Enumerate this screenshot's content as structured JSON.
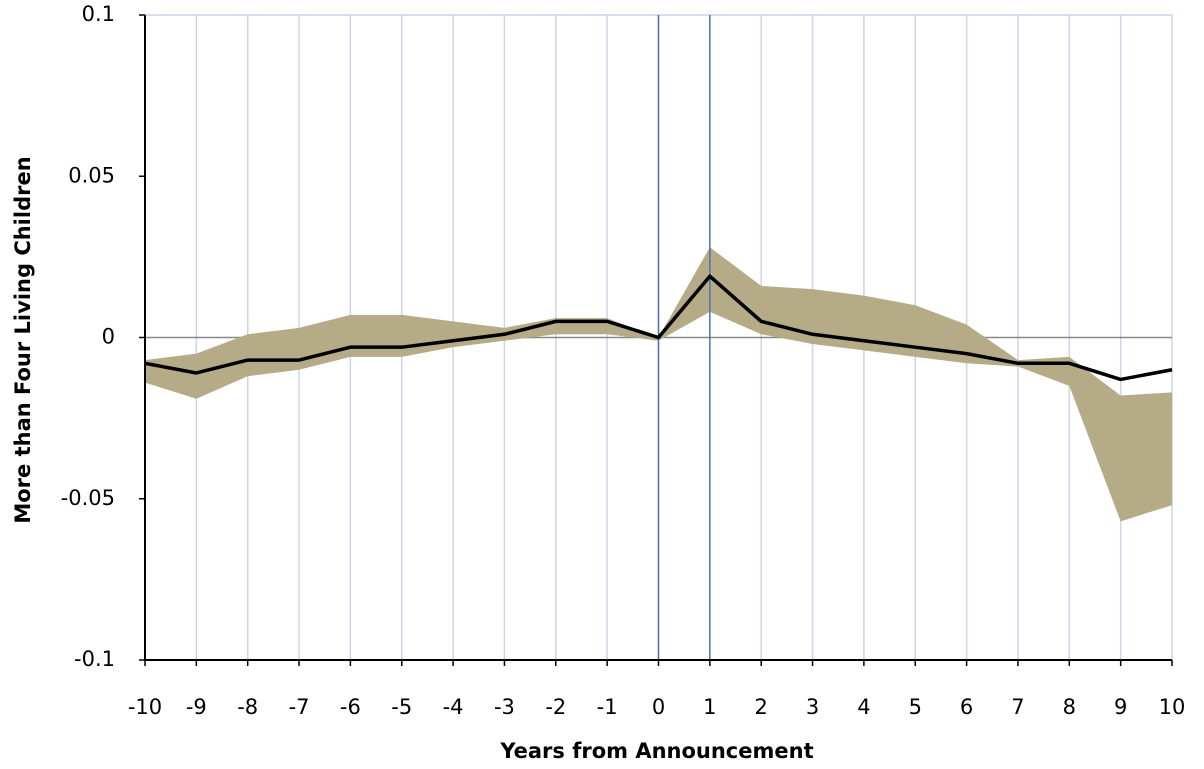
{
  "chart_data": {
    "type": "line",
    "x_label": "Years from Announcement",
    "y_label": "More than Four Living Children",
    "x": [
      -10,
      -9,
      -8,
      -7,
      -6,
      -5,
      -4,
      -3,
      -2,
      -1,
      0,
      1,
      2,
      3,
      4,
      5,
      6,
      7,
      8,
      9,
      10
    ],
    "values": [
      -0.008,
      -0.011,
      -0.007,
      -0.007,
      -0.003,
      -0.003,
      -0.001,
      0.001,
      0.005,
      0.005,
      0,
      0.019,
      0.005,
      0.001,
      -0.001,
      -0.003,
      -0.005,
      -0.008,
      -0.008,
      -0.013,
      -0.01
    ],
    "band_upper": [
      -0.007,
      -0.005,
      0.001,
      0.003,
      0.007,
      0.007,
      0.005,
      0.003,
      0.006,
      0.006,
      0,
      0.028,
      0.016,
      0.015,
      0.013,
      0.01,
      0.004,
      -0.007,
      -0.006,
      -0.018,
      -0.017
    ],
    "band_lower": [
      -0.014,
      -0.019,
      -0.012,
      -0.01,
      -0.006,
      -0.006,
      -0.003,
      -0.001,
      0.001,
      0.001,
      -0.001,
      0.008,
      0.001,
      -0.002,
      -0.004,
      -0.006,
      -0.008,
      -0.009,
      -0.015,
      -0.057,
      -0.052
    ],
    "color": "#000000",
    "band_color": "#b5ab86",
    "marker_line_color": "#4f73b0",
    "marker_lines": [
      0,
      1
    ],
    "xlim": [
      -10,
      10
    ],
    "ylim": [
      -0.1,
      0.1
    ],
    "xticks": [
      -10,
      -9,
      -8,
      -7,
      -6,
      -5,
      -4,
      -3,
      -2,
      -1,
      0,
      1,
      2,
      3,
      4,
      5,
      6,
      7,
      8,
      9,
      10
    ],
    "yticks": [
      -0.1,
      -0.05,
      0,
      0.05,
      0.1
    ],
    "grid": true
  }
}
